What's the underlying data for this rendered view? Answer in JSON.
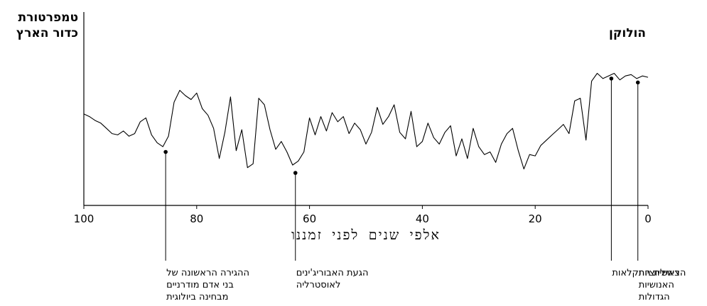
{
  "chart_data": {
    "type": "line",
    "ylabel_lines": [
      "טמפרטורת",
      "כדור הארץ"
    ],
    "xlabel": "אלפי שנים לפני זמננו",
    "xlim": [
      100,
      0
    ],
    "xticks": [
      100,
      80,
      60,
      40,
      20,
      0
    ],
    "ylim": [
      0,
      100
    ],
    "grid": false,
    "period_label": "הולוקן",
    "series": [
      {
        "x": [
          100,
          99,
          98,
          97,
          96,
          95,
          94,
          93,
          92,
          91,
          90,
          89,
          88,
          87,
          86,
          85,
          84,
          83,
          82,
          81,
          80,
          79,
          78,
          77,
          76,
          75,
          74,
          73,
          72,
          71,
          70,
          69,
          68,
          67,
          66,
          65,
          64,
          63,
          62,
          61,
          60,
          59,
          58,
          57,
          56,
          55,
          54,
          53,
          52,
          51,
          50,
          49,
          48,
          47,
          46,
          45,
          44,
          43,
          42,
          41,
          40,
          39,
          38,
          37,
          36,
          35,
          34,
          33,
          32,
          31,
          30,
          29,
          28,
          27,
          26,
          25,
          24,
          23,
          22,
          21,
          20,
          19,
          18,
          17,
          16,
          15,
          14,
          13,
          12,
          11,
          10,
          9,
          8,
          7,
          6,
          5,
          4,
          3,
          2,
          1,
          0
        ],
        "y": [
          59,
          57,
          54,
          52,
          48,
          44,
          43,
          46,
          42,
          44,
          53,
          56,
          43,
          37,
          34,
          42,
          68,
          77,
          73,
          70,
          75,
          63,
          58,
          48,
          25,
          45,
          72,
          31,
          47,
          18,
          21,
          71,
          66,
          47,
          32,
          38,
          30,
          20,
          23,
          30,
          56,
          43,
          57,
          46,
          60,
          53,
          57,
          44,
          52,
          47,
          36,
          45,
          64,
          51,
          57,
          66,
          45,
          40,
          61,
          34,
          38,
          52,
          41,
          36,
          45,
          50,
          27,
          40,
          25,
          48,
          34,
          28,
          30,
          22,
          36,
          44,
          48,
          31,
          17,
          28,
          27,
          35,
          39,
          43,
          47,
          51,
          44,
          69,
          71,
          39,
          84,
          90,
          86,
          88,
          90,
          85,
          88,
          89,
          86,
          88,
          87
        ]
      }
    ],
    "annotations": [
      {
        "x": 85.5,
        "y": 30,
        "text": [
          "ההגירה הראשונה של",
          "בני אדם מודרניים",
          "מבחינה ביולוגית"
        ]
      },
      {
        "x": 62.5,
        "y": 14,
        "text": [
          "הגעת האבוריג'ינים",
          "לאוסטרליה"
        ]
      },
      {
        "x": 6.5,
        "y": 86,
        "text": [
          "ראשית החקלאות"
        ]
      },
      {
        "x": 1.8,
        "y": 83,
        "text": [
          "הציוויליזציות",
          "האנושיות",
          "הגדולות"
        ]
      }
    ]
  }
}
